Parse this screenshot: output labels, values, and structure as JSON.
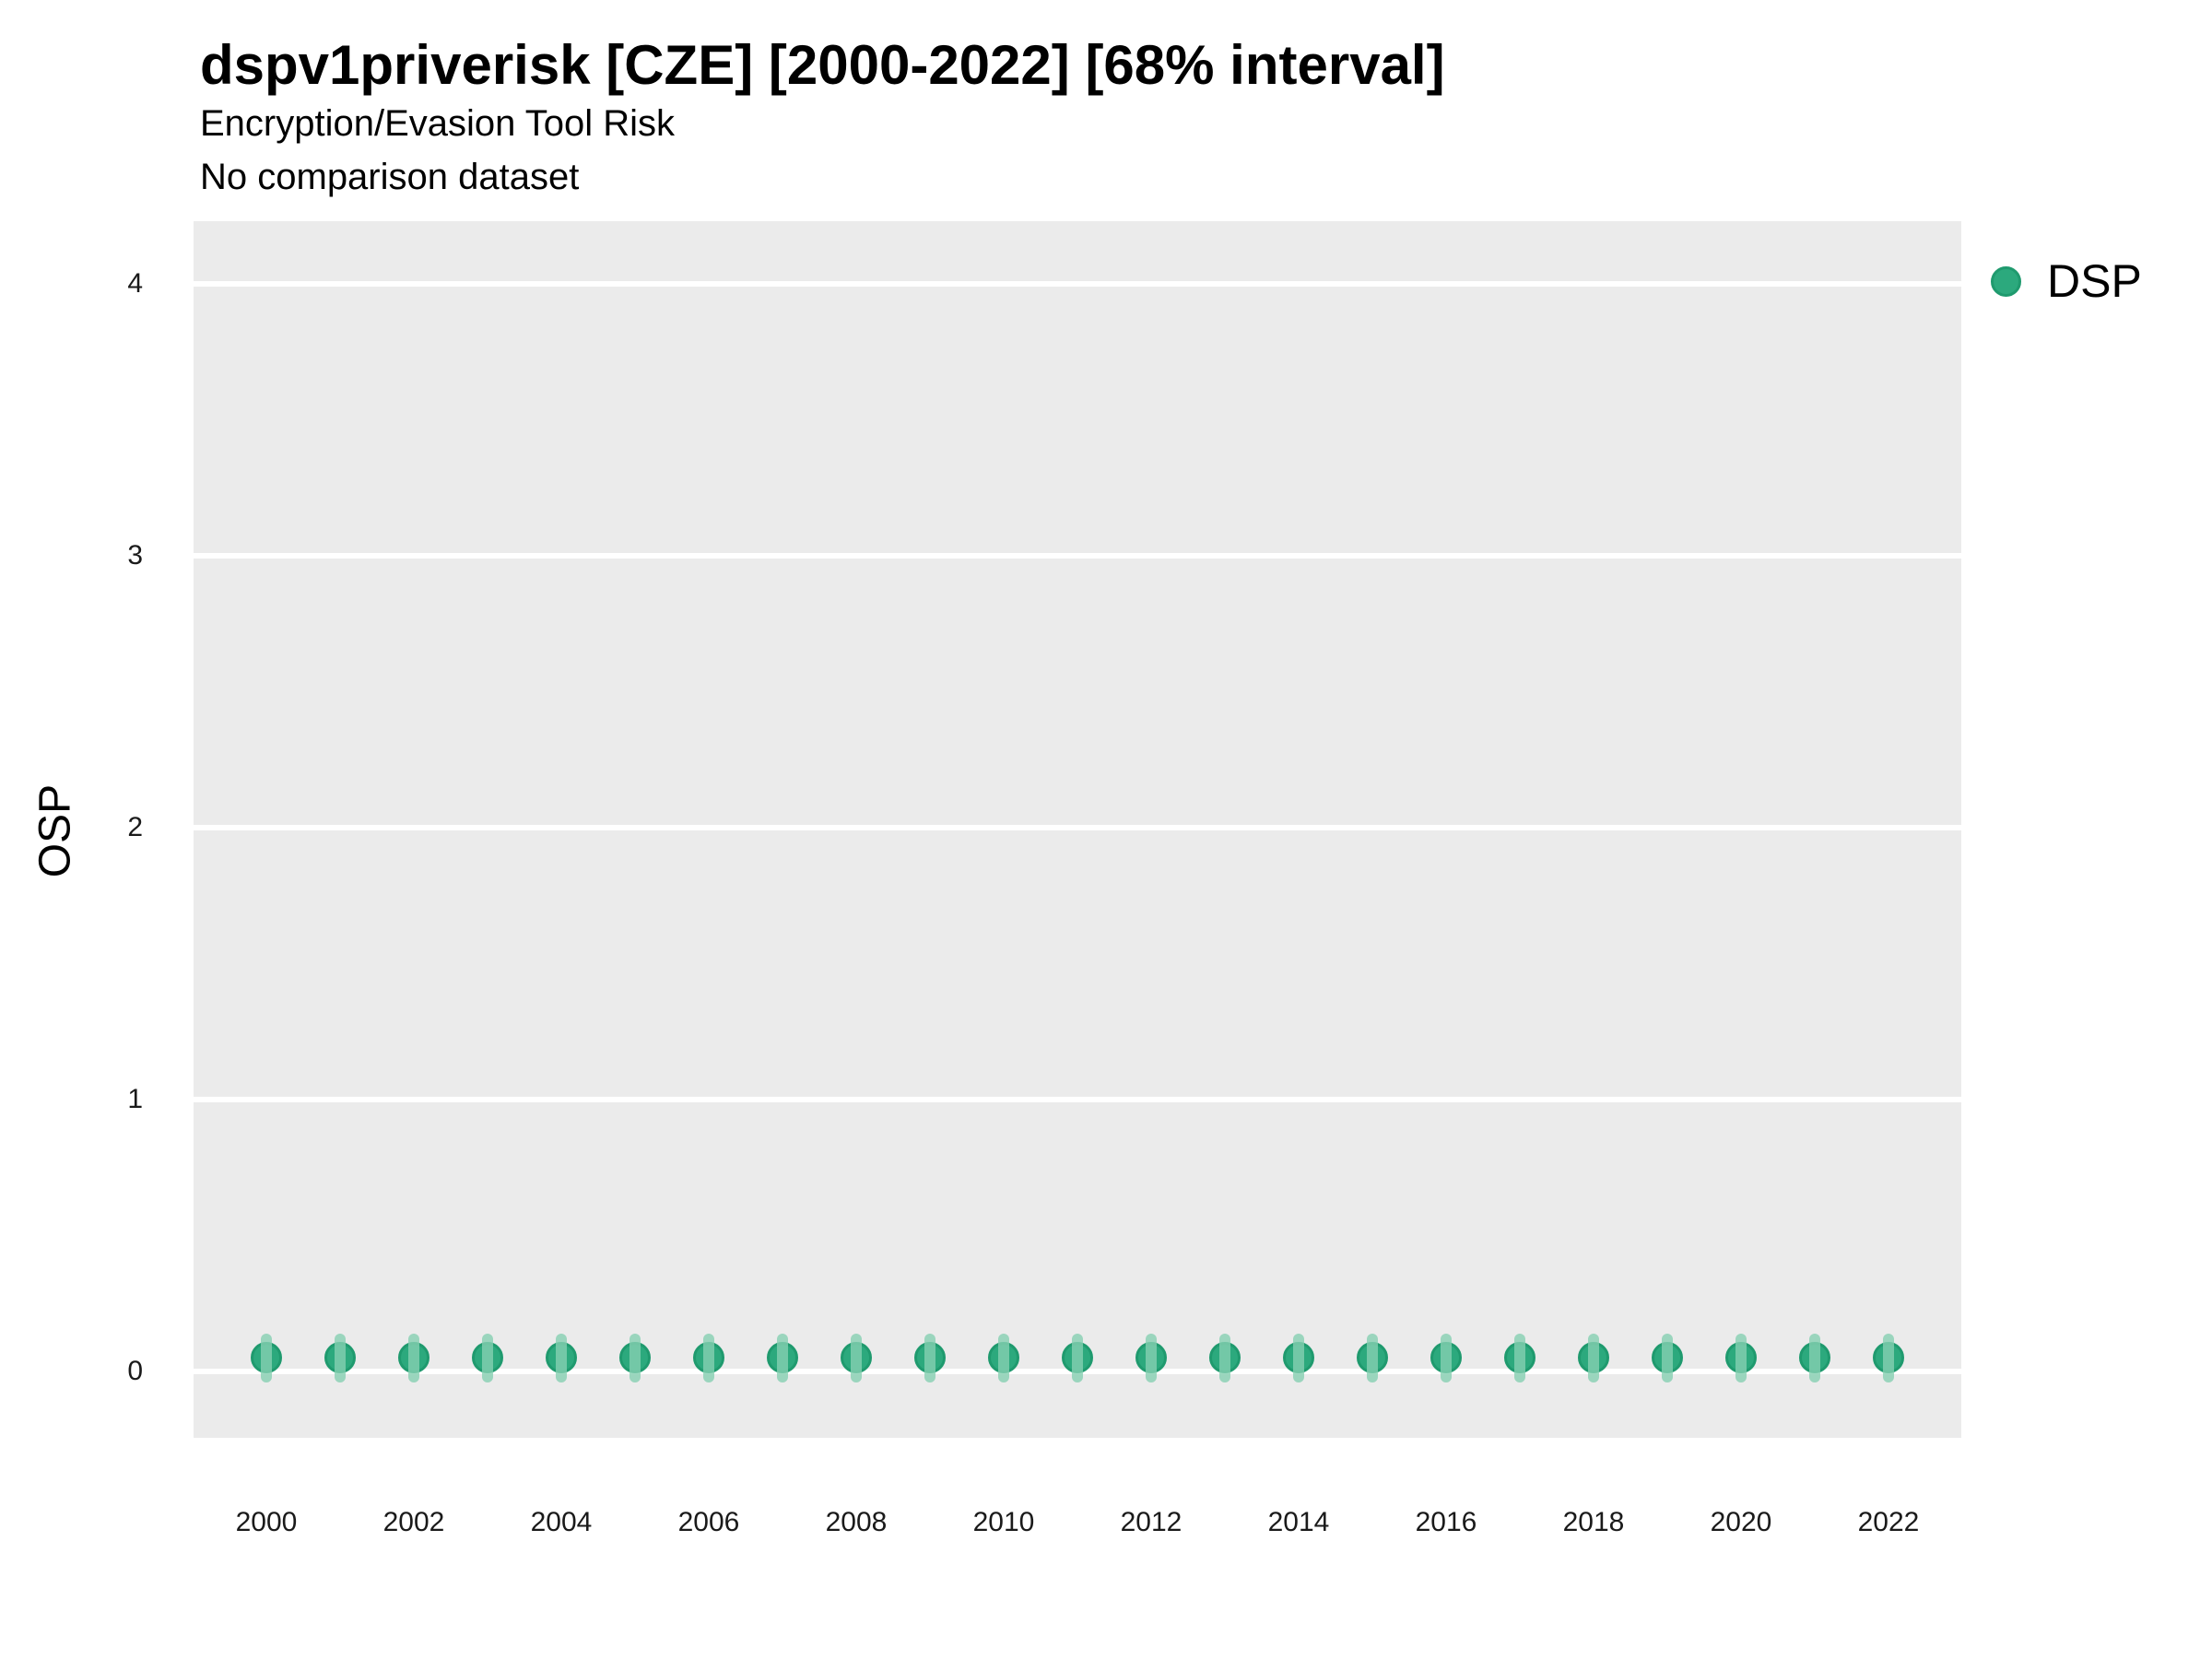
{
  "header": {
    "title": "dspv1priverisk [CZE] [2000-2022] [68% interval]",
    "subtitle": "Encryption/Evasion Tool Risk",
    "note": "No comparison dataset"
  },
  "legend": {
    "items": [
      {
        "label": "DSP",
        "color": "#2ca97d"
      }
    ]
  },
  "axes": {
    "y_label": "OSP",
    "y_ticks": [
      0,
      1,
      2,
      3,
      4
    ],
    "x_ticks": [
      2000,
      2002,
      2004,
      2006,
      2008,
      2010,
      2012,
      2014,
      2016,
      2018,
      2020,
      2022
    ]
  },
  "colors": {
    "point_fill": "#2ca97d",
    "point_stroke": "#1f9a6e",
    "interval": "#86d0b1",
    "panel_background": "#ebebeb",
    "gridline": "#ffffff"
  },
  "chart_data": {
    "type": "scatter",
    "title": "dspv1priverisk [CZE] [2000-2022] [68% interval]",
    "subtitle": "Encryption/Evasion Tool Risk",
    "note": "No comparison dataset",
    "xlabel": "",
    "ylabel": "OSP",
    "xlim": [
      1999,
      2023
    ],
    "ylim": [
      -0.25,
      4.25
    ],
    "grid": "major-horizontal-only",
    "legend_position": "right",
    "series": [
      {
        "name": "DSP",
        "x": [
          2000,
          2001,
          2002,
          2003,
          2004,
          2005,
          2006,
          2007,
          2008,
          2009,
          2010,
          2011,
          2012,
          2013,
          2014,
          2015,
          2016,
          2017,
          2018,
          2019,
          2020,
          2021,
          2022
        ],
        "y": [
          0.05,
          0.05,
          0.05,
          0.05,
          0.05,
          0.05,
          0.05,
          0.05,
          0.05,
          0.05,
          0.05,
          0.05,
          0.05,
          0.05,
          0.05,
          0.05,
          0.05,
          0.05,
          0.05,
          0.05,
          0.05,
          0.05,
          0.05
        ],
        "interval_low": [
          -0.04,
          -0.04,
          -0.04,
          -0.04,
          -0.04,
          -0.04,
          -0.04,
          -0.04,
          -0.04,
          -0.04,
          -0.04,
          -0.04,
          -0.04,
          -0.04,
          -0.04,
          -0.04,
          -0.04,
          -0.04,
          -0.04,
          -0.04,
          -0.04,
          -0.04,
          -0.04
        ],
        "interval_high": [
          0.14,
          0.14,
          0.14,
          0.14,
          0.14,
          0.14,
          0.14,
          0.14,
          0.14,
          0.14,
          0.14,
          0.14,
          0.14,
          0.14,
          0.14,
          0.14,
          0.14,
          0.14,
          0.14,
          0.14,
          0.14,
          0.14,
          0.14
        ],
        "interval_label": "68% interval"
      }
    ]
  }
}
